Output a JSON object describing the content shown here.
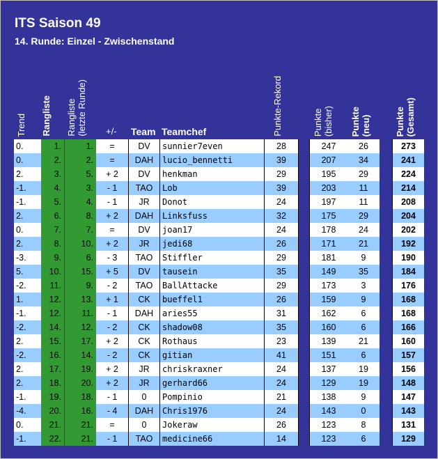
{
  "title": "ITS Saison 49",
  "subtitle": "14. Runde: Einzel - Zwischenstand",
  "headers": {
    "trend": "Trend",
    "rangliste": "Rangliste",
    "rangliste_letzte": "Rangliste\n(letzte Runde)",
    "diff": "+/-",
    "team": "Team",
    "teamchef": "Teamchef",
    "rekord": "Punkte-Rekord",
    "bisher": "Punkte\n(bisher)",
    "neu": "Punkte\n(neu)",
    "gesamt": "Punkte\n(Gesamt)"
  },
  "colors": {
    "background": "#333399",
    "rank_column": "#339933",
    "row_alt": "#99ccff",
    "row": "#ffffff"
  },
  "rows": [
    {
      "trend": "0.",
      "rank": "1.",
      "prev": "1.",
      "diff": "=",
      "team": "DV",
      "chef": "sunnier7even",
      "rekord": "28",
      "bisher": "247",
      "neu": "26",
      "gesamt": "273"
    },
    {
      "trend": "0.",
      "rank": "2.",
      "prev": "2.",
      "diff": "=",
      "team": "DAH",
      "chef": "lucio_bennetti",
      "rekord": "39",
      "bisher": "207",
      "neu": "34",
      "gesamt": "241"
    },
    {
      "trend": "2.",
      "rank": "3.",
      "prev": "5.",
      "diff": "+ 2",
      "team": "DV",
      "chef": "henkman",
      "rekord": "29",
      "bisher": "195",
      "neu": "29",
      "gesamt": "224"
    },
    {
      "trend": "-1.",
      "rank": "4.",
      "prev": "3.",
      "diff": "- 1",
      "team": "TAO",
      "chef": "Lob",
      "rekord": "39",
      "bisher": "203",
      "neu": "11",
      "gesamt": "214"
    },
    {
      "trend": "-1.",
      "rank": "5.",
      "prev": "4.",
      "diff": "- 1",
      "team": "JR",
      "chef": "Donot",
      "rekord": "24",
      "bisher": "197",
      "neu": "11",
      "gesamt": "208"
    },
    {
      "trend": "2.",
      "rank": "6.",
      "prev": "8.",
      "diff": "+ 2",
      "team": "DAH",
      "chef": "Linksfuss",
      "rekord": "32",
      "bisher": "175",
      "neu": "29",
      "gesamt": "204"
    },
    {
      "trend": "0.",
      "rank": "7.",
      "prev": "7.",
      "diff": "=",
      "team": "DV",
      "chef": "joan17",
      "rekord": "24",
      "bisher": "178",
      "neu": "24",
      "gesamt": "202"
    },
    {
      "trend": "2.",
      "rank": "8.",
      "prev": "10.",
      "diff": "+ 2",
      "team": "JR",
      "chef": "jedi68",
      "rekord": "26",
      "bisher": "171",
      "neu": "21",
      "gesamt": "192"
    },
    {
      "trend": "-3.",
      "rank": "9.",
      "prev": "6.",
      "diff": "- 3",
      "team": "TAO",
      "chef": "Stiffler",
      "rekord": "29",
      "bisher": "181",
      "neu": "9",
      "gesamt": "190"
    },
    {
      "trend": "5.",
      "rank": "10.",
      "prev": "15.",
      "diff": "+ 5",
      "team": "DV",
      "chef": "tausein",
      "rekord": "35",
      "bisher": "149",
      "neu": "35",
      "gesamt": "184"
    },
    {
      "trend": "-2.",
      "rank": "11.",
      "prev": "9.",
      "diff": "- 2",
      "team": "TAO",
      "chef": "BallAttacke",
      "rekord": "29",
      "bisher": "173",
      "neu": "3",
      "gesamt": "176"
    },
    {
      "trend": "1.",
      "rank": "12.",
      "prev": "13.",
      "diff": "+ 1",
      "team": "CK",
      "chef": "bueffel1",
      "rekord": "26",
      "bisher": "159",
      "neu": "9",
      "gesamt": "168"
    },
    {
      "trend": "-1.",
      "rank": "12.",
      "prev": "11.",
      "diff": "- 1",
      "team": "DAH",
      "chef": "aries55",
      "rekord": "31",
      "bisher": "162",
      "neu": "6",
      "gesamt": "168"
    },
    {
      "trend": "-2.",
      "rank": "14.",
      "prev": "12.",
      "diff": "- 2",
      "team": "CK",
      "chef": "shadow08",
      "rekord": "35",
      "bisher": "160",
      "neu": "6",
      "gesamt": "166"
    },
    {
      "trend": "2.",
      "rank": "15.",
      "prev": "17.",
      "diff": "+ 2",
      "team": "CK",
      "chef": "Rothaus",
      "rekord": "23",
      "bisher": "139",
      "neu": "21",
      "gesamt": "160"
    },
    {
      "trend": "-2.",
      "rank": "16.",
      "prev": "14.",
      "diff": "- 2",
      "team": "CK",
      "chef": "gitian",
      "rekord": "41",
      "bisher": "151",
      "neu": "6",
      "gesamt": "157"
    },
    {
      "trend": "2.",
      "rank": "17.",
      "prev": "19.",
      "diff": "+ 2",
      "team": "JR",
      "chef": "chriskraxner",
      "rekord": "24",
      "bisher": "137",
      "neu": "19",
      "gesamt": "156"
    },
    {
      "trend": "2.",
      "rank": "18.",
      "prev": "20.",
      "diff": "+ 2",
      "team": "JR",
      "chef": "gerhard66",
      "rekord": "24",
      "bisher": "129",
      "neu": "19",
      "gesamt": "148"
    },
    {
      "trend": "-1.",
      "rank": "19.",
      "prev": "18.",
      "diff": "- 1",
      "team": "0",
      "chef": "Pompinio",
      "rekord": "21",
      "bisher": "138",
      "neu": "9",
      "gesamt": "147"
    },
    {
      "trend": "-4.",
      "rank": "20.",
      "prev": "16.",
      "diff": "- 4",
      "team": "DAH",
      "chef": "Chris1976",
      "rekord": "24",
      "bisher": "143",
      "neu": "0",
      "gesamt": "143"
    },
    {
      "trend": "0.",
      "rank": "21.",
      "prev": "21.",
      "diff": "=",
      "team": "0",
      "chef": "Jokeraw",
      "rekord": "26",
      "bisher": "123",
      "neu": "8",
      "gesamt": "131"
    },
    {
      "trend": "-1.",
      "rank": "22.",
      "prev": "21.",
      "diff": "- 1",
      "team": "TAO",
      "chef": "medicine66",
      "rekord": "14",
      "bisher": "123",
      "neu": "6",
      "gesamt": "129"
    }
  ]
}
